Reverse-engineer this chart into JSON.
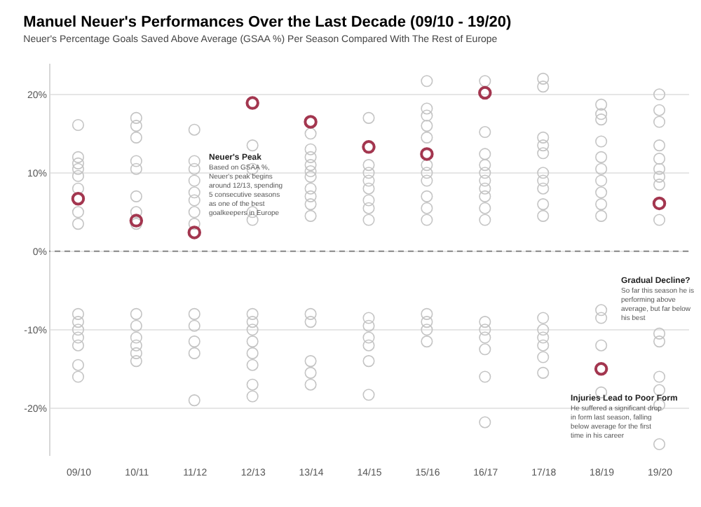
{
  "chart_data": {
    "type": "scatter",
    "title": "Manuel Neuer's Performances Over the Last Decade (09/10 - 19/20)",
    "subtitle": "Neuer's Percentage Goals Saved Above Average (GSAA %) Per Season Compared With The Rest of Europe",
    "categories": [
      "09/10",
      "10/11",
      "11/12",
      "12/13",
      "13/14",
      "14/15",
      "15/16",
      "16/17",
      "17/18",
      "18/19",
      "19/20"
    ],
    "series": [
      {
        "color": "#c4c4c4",
        "x": [
          "09/10",
          "09/10",
          "09/10",
          "09/10",
          "09/10",
          "09/10",
          "09/10",
          "09/10",
          "09/10",
          "09/10",
          "09/10",
          "09/10",
          "09/10",
          "09/10",
          "09/10",
          "10/11",
          "10/11",
          "10/11",
          "10/11",
          "10/11",
          "10/11",
          "10/11",
          "10/11",
          "10/11",
          "10/11",
          "10/11",
          "10/11",
          "10/11",
          "10/11",
          "11/12",
          "11/12",
          "11/12",
          "11/12",
          "11/12",
          "11/12",
          "11/12",
          "11/12",
          "11/12",
          "11/12",
          "11/12",
          "11/12",
          "11/12",
          "12/13",
          "12/13",
          "12/13",
          "12/13",
          "12/13",
          "12/13",
          "12/13",
          "12/13",
          "12/13",
          "12/13",
          "12/13",
          "12/13",
          "13/14",
          "13/14",
          "13/14",
          "13/14",
          "13/14",
          "13/14",
          "13/14",
          "13/14",
          "13/14",
          "13/14",
          "13/14",
          "13/14",
          "13/14",
          "13/14",
          "13/14",
          "14/15",
          "14/15",
          "14/15",
          "14/15",
          "14/15",
          "14/15",
          "14/15",
          "14/15",
          "14/15",
          "14/15",
          "14/15",
          "14/15",
          "14/15",
          "14/15",
          "15/16",
          "15/16",
          "15/16",
          "15/16",
          "15/16",
          "15/16",
          "15/16",
          "15/16",
          "15/16",
          "15/16",
          "15/16",
          "15/16",
          "15/16",
          "15/16",
          "15/16",
          "16/17",
          "16/17",
          "16/17",
          "16/17",
          "16/17",
          "16/17",
          "16/17",
          "16/17",
          "16/17",
          "16/17",
          "16/17",
          "16/17",
          "16/17",
          "16/17",
          "16/17",
          "16/17",
          "17/18",
          "17/18",
          "17/18",
          "17/18",
          "17/18",
          "17/18",
          "17/18",
          "17/18",
          "17/18",
          "17/18",
          "17/18",
          "17/18",
          "17/18",
          "17/18",
          "17/18",
          "17/18",
          "18/19",
          "18/19",
          "18/19",
          "18/19",
          "18/19",
          "18/19",
          "18/19",
          "18/19",
          "18/19",
          "18/19",
          "18/19",
          "18/19",
          "18/19",
          "18/19",
          "19/20",
          "19/20",
          "19/20",
          "19/20",
          "19/20",
          "19/20",
          "19/20",
          "19/20",
          "19/20",
          "19/20",
          "19/20",
          "19/20",
          "19/20",
          "19/20",
          "19/20"
        ],
        "values": [
          16.1,
          12,
          11.2,
          10.5,
          9.6,
          8,
          5,
          3.5,
          -8,
          -9,
          -10,
          -11,
          -12,
          -14.5,
          -16,
          17,
          16,
          14.5,
          11.5,
          10.5,
          7,
          5,
          3.5,
          -8,
          -9.5,
          -11,
          -12,
          -13,
          -14,
          15.5,
          11.5,
          10.5,
          9,
          7.5,
          6.5,
          5,
          3.5,
          -8,
          -9.5,
          -11.5,
          -13,
          -19,
          13.5,
          10.5,
          5,
          4,
          -8,
          -9,
          -10,
          -11.5,
          -13,
          -14.5,
          -17,
          -18.5,
          15,
          13,
          12,
          11,
          10.2,
          9.5,
          8,
          7,
          6,
          4.5,
          -8,
          -9,
          -14,
          -15.5,
          -17,
          17,
          11,
          10,
          9,
          8,
          6.5,
          5.5,
          4,
          -8.5,
          -9.5,
          -11,
          -12,
          -14,
          -18.3,
          21.7,
          18.2,
          17.3,
          16,
          14.5,
          11,
          10,
          9,
          7,
          5.5,
          4,
          -8,
          -9,
          -10,
          -11.5,
          21.7,
          15.2,
          12.4,
          11,
          10,
          9,
          8,
          7,
          5.5,
          4,
          -9,
          -10,
          -11,
          -12.5,
          -16,
          -21.8,
          22,
          21,
          14.5,
          13.5,
          12.5,
          10,
          9,
          8,
          6,
          4.5,
          -8.5,
          -10,
          -11,
          -12,
          -13.5,
          -15.5,
          18.7,
          17.5,
          16.8,
          14,
          12,
          10.5,
          9,
          7.5,
          6,
          4.5,
          -7.5,
          -8.5,
          -12,
          -18,
          20,
          18,
          16.5,
          13.5,
          11.8,
          10.5,
          9.5,
          8.5,
          4,
          -10.5,
          -11.5,
          -16,
          -17.7,
          -19.6,
          -24.6
        ]
      },
      {
        "color": "#a3364f",
        "values": [
          6.7,
          3.9,
          2.4,
          18.9,
          16.5,
          13.3,
          12.4,
          20.2,
          null,
          -15,
          6.1
        ]
      }
    ],
    "ylim": [
      -26,
      24
    ],
    "yticks": [
      {
        "value": -20,
        "label": "-20%"
      },
      {
        "value": -10,
        "label": "-10%"
      },
      {
        "value": 0,
        "label": "0%"
      },
      {
        "value": 10,
        "label": "10%"
      },
      {
        "value": 20,
        "label": "20%"
      }
    ],
    "grid": "y",
    "marker": "circle",
    "ref_lines": [
      {
        "axis": "y",
        "value": 0,
        "line_style": "dashed",
        "color": "#888888"
      }
    ],
    "annotations": [
      "Neuer's Peak",
      "Based on GSAA %,\nNeuer's peak begins\naround 12/13, spending\n5 consecutive seasons\nas one of the best\ngoalkeepers in Europe",
      "Gradual Decline?",
      "So far this season he is\nperforming above\naverage, but far below\nhis best",
      "Injuries Lead to Poor Form",
      "He suffered a significant drop\nin form last season, falling\nbelow average for the first\ntime in his career"
    ]
  }
}
